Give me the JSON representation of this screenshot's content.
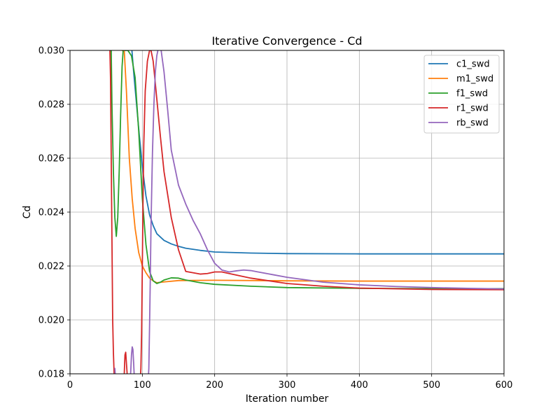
{
  "chart_data": {
    "type": "line",
    "title": "Iterative Convergence - Cd",
    "xlabel": "Iteration number",
    "ylabel": "Cd",
    "xlim": [
      0,
      600
    ],
    "ylim": [
      0.018,
      0.03
    ],
    "xticks": [
      0,
      100,
      200,
      300,
      400,
      500,
      600
    ],
    "xtick_labels": [
      "0",
      "100",
      "200",
      "300",
      "400",
      "500",
      "600"
    ],
    "yticks": [
      0.018,
      0.02,
      0.022,
      0.024,
      0.026,
      0.028,
      0.03
    ],
    "ytick_labels": [
      "0.018",
      "0.020",
      "0.022",
      "0.024",
      "0.026",
      "0.028",
      "0.030"
    ],
    "grid": true,
    "legend_position": "top-right",
    "series": [
      {
        "name": "c1_swd",
        "color": "#1f77b4",
        "x": [
          85,
          88,
          92,
          96,
          100,
          105,
          110,
          115,
          120,
          130,
          140,
          150,
          160,
          180,
          200,
          250,
          300,
          400,
          500,
          600
        ],
        "y": [
          0.0302,
          0.0292,
          0.028,
          0.0268,
          0.0257,
          0.0246,
          0.0239,
          0.0235,
          0.0232,
          0.02295,
          0.02282,
          0.02273,
          0.02266,
          0.02258,
          0.02252,
          0.02248,
          0.02246,
          0.02245,
          0.02245,
          0.02245
        ]
      },
      {
        "name": "m1_swd",
        "color": "#ff7f0e",
        "x": [
          72,
          75,
          78,
          82,
          86,
          90,
          95,
          100,
          105,
          110,
          115,
          120,
          130,
          150,
          200,
          300,
          400,
          600
        ],
        "y": [
          0.03,
          0.03,
          0.0285,
          0.026,
          0.0245,
          0.0234,
          0.0225,
          0.022,
          0.02175,
          0.02155,
          0.02145,
          0.02138,
          0.02141,
          0.02146,
          0.02147,
          0.02145,
          0.02144,
          0.02144
        ]
      },
      {
        "name": "f1_swd",
        "color": "#2ca02c",
        "x": [
          57,
          58,
          60,
          62,
          64,
          66,
          68,
          70,
          72,
          74,
          76,
          80,
          85,
          90,
          95,
          100,
          105,
          110,
          115,
          120,
          125,
          130,
          140,
          150,
          160,
          180,
          200,
          250,
          300,
          400,
          500,
          600
        ],
        "y": [
          0.03,
          0.028,
          0.0255,
          0.0238,
          0.0231,
          0.0238,
          0.0255,
          0.0276,
          0.0294,
          0.0302,
          0.03,
          0.03,
          0.0298,
          0.029,
          0.027,
          0.0245,
          0.0228,
          0.0218,
          0.02145,
          0.02135,
          0.0214,
          0.02148,
          0.02156,
          0.02155,
          0.02148,
          0.02138,
          0.02132,
          0.02125,
          0.0212,
          0.02117,
          0.02116,
          0.02116
        ]
      },
      {
        "name": "r1_swd",
        "color": "#d62728",
        "x": [
          55,
          56,
          57,
          58,
          59,
          60,
          61,
          62,
          74,
          75,
          76,
          77,
          78,
          79,
          80,
          81,
          97,
          98,
          99,
          100,
          101,
          102,
          104,
          107,
          110,
          112,
          115,
          120,
          125,
          130,
          140,
          150,
          160,
          170,
          180,
          190,
          200,
          210,
          220,
          250,
          300,
          350,
          400,
          500,
          600
        ],
        "y": [
          0.0302,
          0.029,
          0.026,
          0.023,
          0.02,
          0.0188,
          0.018,
          0.0177,
          0.0177,
          0.018,
          0.0187,
          0.0188,
          0.0184,
          0.018,
          0.0178,
          0.0177,
          0.0177,
          0.0182,
          0.0195,
          0.022,
          0.0245,
          0.0265,
          0.0285,
          0.0296,
          0.03,
          0.03,
          0.0296,
          0.0282,
          0.0268,
          0.0255,
          0.0238,
          0.0226,
          0.0218,
          0.02175,
          0.0217,
          0.02172,
          0.02178,
          0.02178,
          0.02172,
          0.02155,
          0.02135,
          0.02125,
          0.02118,
          0.02113,
          0.02112
        ]
      },
      {
        "name": "rb_swd",
        "color": "#9467bd",
        "x": [
          62,
          63,
          64,
          65,
          83,
          84,
          85,
          86,
          87,
          88,
          89,
          90,
          108,
          109,
          110,
          111,
          112,
          114,
          116,
          118,
          120,
          123,
          126,
          130,
          135,
          140,
          150,
          160,
          170,
          180,
          190,
          200,
          210,
          220,
          230,
          240,
          250,
          260,
          280,
          300,
          350,
          400,
          450,
          500,
          550,
          600
        ],
        "y": [
          0.0182,
          0.0178,
          0.0178,
          0.0177,
          0.0177,
          0.0181,
          0.0187,
          0.019,
          0.0189,
          0.0184,
          0.0178,
          0.0177,
          0.0177,
          0.0182,
          0.0198,
          0.0215,
          0.0235,
          0.0262,
          0.028,
          0.0292,
          0.0298,
          0.0302,
          0.03,
          0.0292,
          0.0278,
          0.0263,
          0.025,
          0.0243,
          0.0237,
          0.0232,
          0.0226,
          0.0221,
          0.02185,
          0.02178,
          0.02182,
          0.02185,
          0.02183,
          0.02178,
          0.02168,
          0.02158,
          0.0214,
          0.0213,
          0.02124,
          0.0212,
          0.02117,
          0.02115
        ]
      }
    ]
  }
}
